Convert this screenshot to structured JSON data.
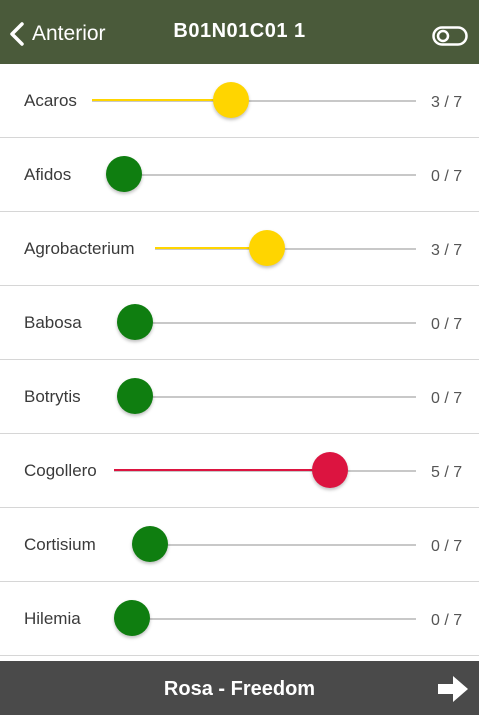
{
  "header": {
    "back_label": "Anterior",
    "title": "B01N01C01 1",
    "back_icon": "chevron-left-icon",
    "toggle_icon": "toggle-icon"
  },
  "colors": {
    "header_bg": "#4a5a3a",
    "footer_bg": "#4a4a4a",
    "level_zero": "#0f7e10",
    "level_mid": "#ffd500",
    "level_high": "#dc1440"
  },
  "items": [
    {
      "label": "Acaros",
      "count": "3 / 7",
      "value": 3,
      "max": 7,
      "color": "#ffd500"
    },
    {
      "label": "Afidos",
      "count": "0 / 7",
      "value": 0,
      "max": 7,
      "color": "#0f7e10"
    },
    {
      "label": "Agrobacterium",
      "count": "3 / 7",
      "value": 3,
      "max": 7,
      "color": "#ffd500"
    },
    {
      "label": "Babosa",
      "count": "0 / 7",
      "value": 0,
      "max": 7,
      "color": "#0f7e10"
    },
    {
      "label": "Botrytis",
      "count": "0 / 7",
      "value": 0,
      "max": 7,
      "color": "#0f7e10"
    },
    {
      "label": "Cogollero",
      "count": "5 / 7",
      "value": 5,
      "max": 7,
      "color": "#dc1440"
    },
    {
      "label": "Cortisium",
      "count": "0 / 7",
      "value": 0,
      "max": 7,
      "color": "#0f7e10"
    },
    {
      "label": "Hilemia",
      "count": "0 / 7",
      "value": 0,
      "max": 7,
      "color": "#0f7e10"
    }
  ],
  "footer": {
    "title": "Rosa - Freedom",
    "next_icon": "arrow-right-icon"
  }
}
